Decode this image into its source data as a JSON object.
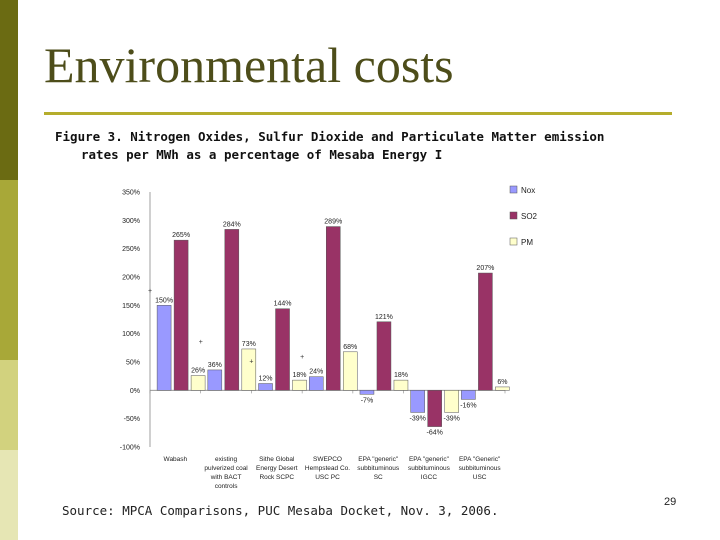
{
  "slide": {
    "title": "Environmental costs",
    "caption_line1": "Figure 3.  Nitrogen Oxides, Sulfur Dioxide and Particulate Matter emission",
    "caption_line2": "rates per MWh as a percentage of Mesaba Energy I",
    "source": "Source: MPCA Comparisons, PUC Mesaba Docket, Nov. 3, 2006.",
    "page_number": "29",
    "sidebar_colors": [
      "#6b6b12",
      "#a8a838",
      "#d2d27e",
      "#e6e6b4"
    ]
  },
  "chart_data": {
    "type": "bar",
    "title": "",
    "xlabel": "",
    "ylabel": "",
    "ylim": [
      -1,
      3.5
    ],
    "yticks": [
      -1,
      -0.5,
      0,
      0.5,
      1,
      1.5,
      2,
      2.5,
      3,
      3.5
    ],
    "ytick_labels": [
      "-100%",
      "-50%",
      "0%",
      "50%",
      "100%",
      "150%",
      "200%",
      "250%",
      "300%",
      "350%"
    ],
    "legend_position": "right",
    "categories": [
      [
        "Wabash"
      ],
      [
        "existing",
        "pulverized coal",
        "with BACT",
        "controls"
      ],
      [
        "Sithe Global",
        "Energy Desert",
        "Rock SCPC"
      ],
      [
        "SWEPCO",
        "Hempstead Co.",
        "USC PC"
      ],
      [
        "EPA \"generic\"",
        "subbituminous",
        "SC"
      ],
      [
        "EPA \"generic\"",
        "subbituminous",
        "IGCC"
      ],
      [
        "EPA \"Generic\"",
        "subbituminous",
        "USC"
      ]
    ],
    "series": [
      {
        "name": "Nox",
        "color": "#9999ff",
        "values": [
          1.5,
          0.36,
          0.12,
          0.24,
          -0.07,
          -0.39,
          -0.16
        ],
        "labels": [
          "150%",
          "36%",
          "12%",
          "24%",
          "-7%",
          "-39%",
          "-16%"
        ]
      },
      {
        "name": "SO2",
        "color": "#993366",
        "values": [
          2.65,
          2.84,
          1.44,
          2.89,
          1.21,
          -0.64,
          2.07
        ],
        "labels": [
          "265%",
          "284%",
          "144%",
          "289%",
          "121%",
          "-64%",
          "207%"
        ]
      },
      {
        "name": "PM",
        "color": "#ffffcc",
        "values": [
          0.26,
          0.73,
          0.18,
          0.68,
          0.18,
          -0.39,
          0.06
        ],
        "labels": [
          "26%",
          "73%",
          "18%",
          "68%",
          "18%",
          "-39%",
          "6%"
        ]
      }
    ],
    "markers": [
      "+",
      "+",
      "+",
      "+"
    ]
  }
}
